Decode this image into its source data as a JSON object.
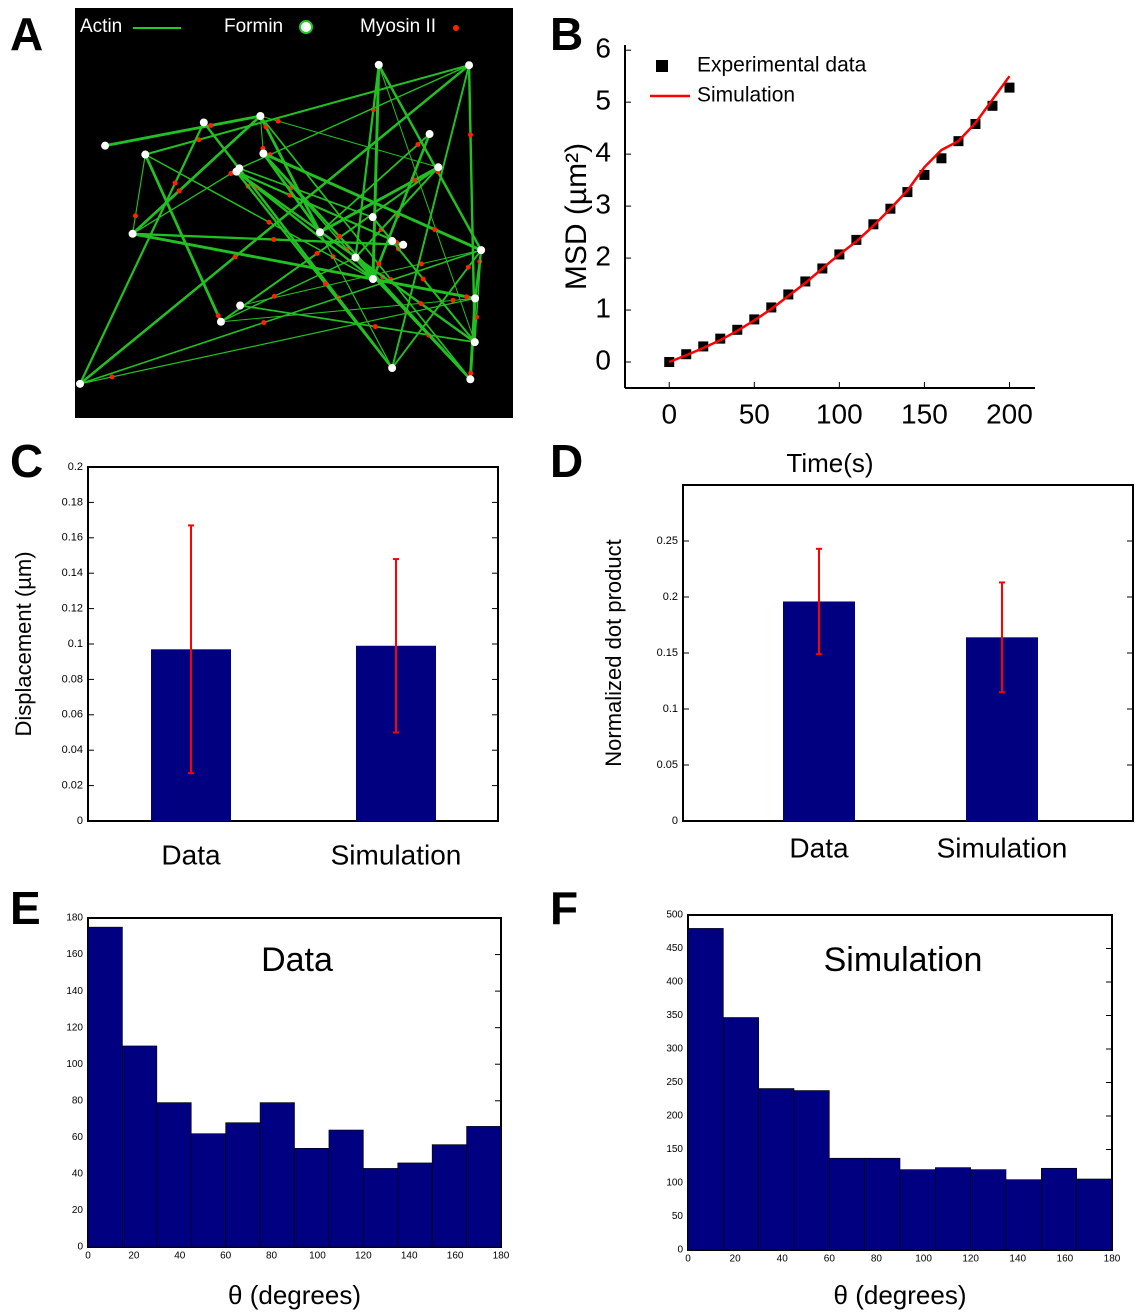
{
  "image_panel": {
    "panel_label": "A",
    "legend": [
      "Actin",
      "Formin",
      "Myosin II"
    ]
  },
  "chart_data": [
    {
      "type": "line",
      "panel_label": "B",
      "xlabel": "Time(s)",
      "ylabel": "MSD  (µm²)",
      "x": [
        0,
        10,
        20,
        30,
        40,
        50,
        60,
        70,
        80,
        90,
        100,
        110,
        120,
        130,
        140,
        150,
        160,
        170,
        180,
        190,
        200
      ],
      "series": [
        {
          "name": "Experimental data",
          "color": "#000000",
          "marker": "square",
          "values": [
            0,
            0.15,
            0.3,
            0.45,
            0.62,
            0.82,
            1.05,
            1.3,
            1.55,
            1.8,
            2.07,
            2.35,
            2.65,
            2.95,
            3.27,
            3.6,
            3.92,
            4.25,
            4.58,
            4.93,
            5.28
          ]
        },
        {
          "name": "Simulation",
          "color": "#ff0000",
          "marker": "none",
          "values": [
            0,
            0.13,
            0.27,
            0.42,
            0.6,
            0.8,
            1.02,
            1.27,
            1.52,
            1.8,
            2.07,
            2.32,
            2.62,
            2.95,
            3.3,
            3.75,
            4.08,
            4.25,
            4.6,
            5.05,
            5.5
          ]
        }
      ],
      "xlim": [
        -26,
        215
      ],
      "ylim": [
        -0.5,
        6.1
      ],
      "xticks": [
        0,
        50,
        100,
        150,
        200
      ],
      "yticks": [
        0,
        1,
        2,
        3,
        4,
        5,
        6
      ],
      "legend": "upper left"
    },
    {
      "type": "bar",
      "panel_label": "C",
      "ylabel": "Displacement (µm)",
      "categories": [
        "Data",
        "Simulation"
      ],
      "values": [
        0.097,
        0.099
      ],
      "errors": [
        0.07,
        0.049
      ],
      "color": "#000080",
      "error_color": "#ff0000",
      "ylim": [
        0,
        0.2
      ],
      "yticks": [
        0,
        0.02,
        0.04,
        0.06,
        0.08,
        0.1,
        0.12,
        0.14,
        0.16,
        0.18,
        0.2
      ]
    },
    {
      "type": "bar",
      "panel_label": "D",
      "ylabel": "Normalized dot product",
      "categories": [
        "Data",
        "Simulation"
      ],
      "values": [
        0.196,
        0.164
      ],
      "errors": [
        0.047,
        0.049
      ],
      "color": "#000080",
      "error_color": "#ff0000",
      "ylim": [
        0,
        0.3
      ],
      "yticks": [
        0,
        0.05,
        0.1,
        0.15,
        0.2,
        0.25
      ]
    },
    {
      "type": "histogram",
      "panel_label": "E",
      "annotation": "Data",
      "xlabel": "θ (degrees)",
      "bins": [
        0,
        15,
        30,
        45,
        60,
        75,
        90,
        105,
        120,
        135,
        150,
        165,
        180
      ],
      "values": [
        175,
        110,
        79,
        62,
        68,
        79,
        54,
        64,
        43,
        46,
        56,
        66
      ],
      "color": "#000080",
      "xlim": [
        0,
        180
      ],
      "ylim": [
        0,
        180
      ],
      "xticks": [
        0,
        20,
        40,
        60,
        80,
        100,
        120,
        140,
        160,
        180
      ],
      "yticks": [
        0,
        20,
        40,
        60,
        80,
        100,
        120,
        140,
        160,
        180
      ]
    },
    {
      "type": "histogram",
      "panel_label": "F",
      "annotation": "Simulation",
      "xlabel": "θ (degrees)",
      "bins": [
        0,
        15,
        30,
        45,
        60,
        75,
        90,
        105,
        120,
        135,
        150,
        165,
        180
      ],
      "values": [
        480,
        347,
        241,
        238,
        137,
        137,
        120,
        123,
        120,
        105,
        122,
        106
      ],
      "color": "#000080",
      "xlim": [
        0,
        180
      ],
      "ylim": [
        0,
        500
      ],
      "xticks": [
        0,
        20,
        40,
        60,
        80,
        100,
        120,
        140,
        160,
        180
      ],
      "yticks": [
        0,
        50,
        100,
        150,
        200,
        250,
        300,
        350,
        400,
        450,
        500
      ]
    }
  ]
}
